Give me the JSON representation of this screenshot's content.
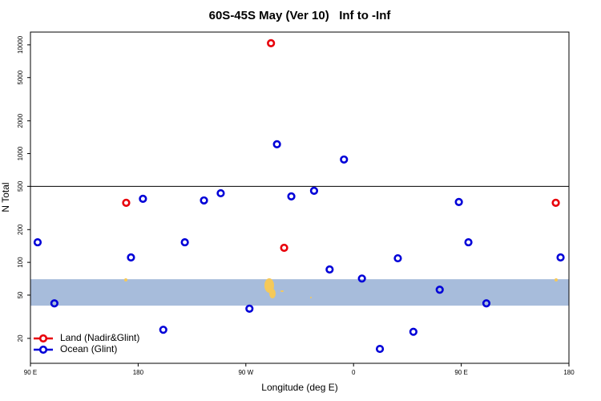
{
  "chart_data": {
    "type": "scatter",
    "title": "60S-45S May (Ver 10)   Inf to -Inf",
    "x_label": "Longitude (deg E)",
    "y_label": "N Total",
    "y_log": true,
    "xlim": [
      90,
      540
    ],
    "ylim": [
      11.8,
      13100
    ],
    "xticks": [
      {
        "value": 90,
        "label": "90 E"
      },
      {
        "value": 180,
        "label": "180"
      },
      {
        "value": 270,
        "label": "90 W"
      },
      {
        "value": 360,
        "label": "0"
      },
      {
        "value": 450,
        "label": "90 E"
      },
      {
        "value": 540,
        "label": "180"
      }
    ],
    "yticks": [
      20,
      50,
      100,
      200,
      500,
      1000,
      2000,
      5000,
      10000
    ],
    "hlines": [
      500
    ],
    "shaded_band": {
      "range": [
        40,
        70
      ],
      "color": "#a7bcdb"
    },
    "legend": "bottom-left",
    "series": [
      {
        "name": "Land (Nadir&Glint)",
        "color": "#e8000b",
        "x": [
          170,
          291,
          302,
          529
        ],
        "values": [
          353,
          10350,
          136,
          353
        ]
      },
      {
        "name": "Ocean (Glint)",
        "color": "#0000d8",
        "x": [
          96,
          110,
          174,
          184,
          201,
          219,
          235,
          249,
          273,
          296,
          308,
          327,
          340,
          352,
          367,
          382,
          397,
          410,
          432,
          448,
          456,
          471,
          533
        ],
        "values": [
          153,
          42,
          111,
          384,
          24,
          153,
          371,
          432,
          37.5,
          1218,
          404,
          455,
          86,
          882,
          71,
          16,
          109,
          23,
          56,
          359,
          153,
          42,
          111
        ]
      }
    ]
  }
}
